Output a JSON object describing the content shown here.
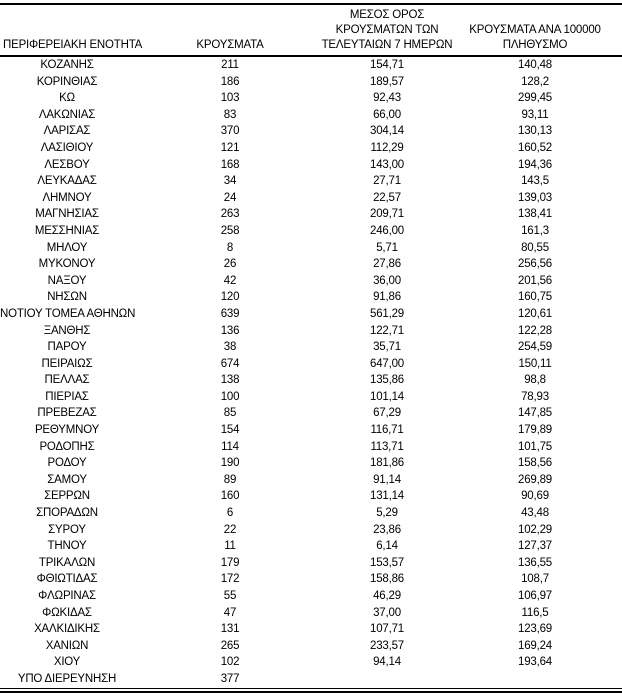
{
  "document": {
    "type": "statistics-table",
    "language": "el"
  },
  "colors": {
    "text": "#000000",
    "rules": "#000000",
    "background": "#ffffff"
  },
  "table": {
    "columns": [
      {
        "id": "region",
        "label": "ΠΕΡΙΦΕΡΕΙΑΚΗ ΕΝΟΤΗΤΑ"
      },
      {
        "id": "cases",
        "label": "ΚΡΟΥΣΜΑΤΑ"
      },
      {
        "id": "avg7",
        "label": "ΜΕΣΟΣ ΟΡΟΣ\nΚΡΟΥΣΜΑΤΩΝ ΤΩΝ\nΤΕΛΕΥΤΑΙΩΝ 7 ΗΜΕΡΩΝ"
      },
      {
        "id": "per100k",
        "label": "ΚΡΟΥΣΜΑΤΑ ΑΝΑ 100000\nΠΛΗΘΥΣΜΟ"
      }
    ],
    "rows": [
      [
        "ΚΟΖΑΝΗΣ",
        "211",
        "154,71",
        "140,48"
      ],
      [
        "ΚΟΡΙΝΘΙΑΣ",
        "186",
        "189,57",
        "128,2"
      ],
      [
        "ΚΩ",
        "103",
        "92,43",
        "299,45"
      ],
      [
        "ΛΑΚΩΝΙΑΣ",
        "83",
        "66,00",
        "93,11"
      ],
      [
        "ΛΑΡΙΣΑΣ",
        "370",
        "304,14",
        "130,13"
      ],
      [
        "ΛΑΣΙΘΙΟΥ",
        "121",
        "112,29",
        "160,52"
      ],
      [
        "ΛΕΣΒΟΥ",
        "168",
        "143,00",
        "194,36"
      ],
      [
        "ΛΕΥΚΑΔΑΣ",
        "34",
        "27,71",
        "143,5"
      ],
      [
        "ΛΗΜΝΟΥ",
        "24",
        "22,57",
        "139,03"
      ],
      [
        "ΜΑΓΝΗΣΙΑΣ",
        "263",
        "209,71",
        "138,41"
      ],
      [
        "ΜΕΣΣΗΝΙΑΣ",
        "258",
        "246,00",
        "161,3"
      ],
      [
        "ΜΗΛΟΥ",
        "8",
        "5,71",
        "80,55"
      ],
      [
        "ΜΥΚΟΝΟΥ",
        "26",
        "27,86",
        "256,56"
      ],
      [
        "ΝΑΞΟΥ",
        "42",
        "36,00",
        "201,56"
      ],
      [
        "ΝΗΣΩΝ",
        "120",
        "91,86",
        "160,75"
      ],
      [
        "ΝΟΤΙΟΥ ΤΟΜΕΑ ΑΘΗΝΩΝ",
        "639",
        "561,29",
        "120,61"
      ],
      [
        "ΞΑΝΘΗΣ",
        "136",
        "122,71",
        "122,28"
      ],
      [
        "ΠΑΡΟΥ",
        "38",
        "35,71",
        "254,59"
      ],
      [
        "ΠΕΙΡΑΙΩΣ",
        "674",
        "647,00",
        "150,11"
      ],
      [
        "ΠΕΛΛΑΣ",
        "138",
        "135,86",
        "98,8"
      ],
      [
        "ΠΙΕΡΙΑΣ",
        "100",
        "101,14",
        "78,93"
      ],
      [
        "ΠΡΕΒΕΖΑΣ",
        "85",
        "67,29",
        "147,85"
      ],
      [
        "ΡΕΘΥΜΝΟΥ",
        "154",
        "116,71",
        "179,89"
      ],
      [
        "ΡΟΔΟΠΗΣ",
        "114",
        "113,71",
        "101,75"
      ],
      [
        "ΡΟΔΟΥ",
        "190",
        "181,86",
        "158,56"
      ],
      [
        "ΣΑΜΟΥ",
        "89",
        "91,14",
        "269,89"
      ],
      [
        "ΣΕΡΡΩΝ",
        "160",
        "131,14",
        "90,69"
      ],
      [
        "ΣΠΟΡΑΔΩΝ",
        "6",
        "5,29",
        "43,48"
      ],
      [
        "ΣΥΡΟΥ",
        "22",
        "23,86",
        "102,29"
      ],
      [
        "ΤΗΝΟΥ",
        "11",
        "6,14",
        "127,37"
      ],
      [
        "ΤΡΙΚΑΛΩΝ",
        "179",
        "153,57",
        "136,55"
      ],
      [
        "ΦΘΙΩΤΙΔΑΣ",
        "172",
        "158,86",
        "108,7"
      ],
      [
        "ΦΛΩΡΙΝΑΣ",
        "55",
        "46,29",
        "106,97"
      ],
      [
        "ΦΩΚΙΔΑΣ",
        "47",
        "37,00",
        "116,5"
      ],
      [
        "ΧΑΛΚΙΔΙΚΗΣ",
        "131",
        "107,71",
        "123,69"
      ],
      [
        "ΧΑΝΙΩΝ",
        "265",
        "233,57",
        "169,24"
      ],
      [
        "ΧΙΟΥ",
        "102",
        "94,14",
        "193,64"
      ],
      [
        "ΥΠΟ ΔΙΕΡΕΥΝΗΣΗ",
        "377",
        "",
        ""
      ]
    ]
  }
}
